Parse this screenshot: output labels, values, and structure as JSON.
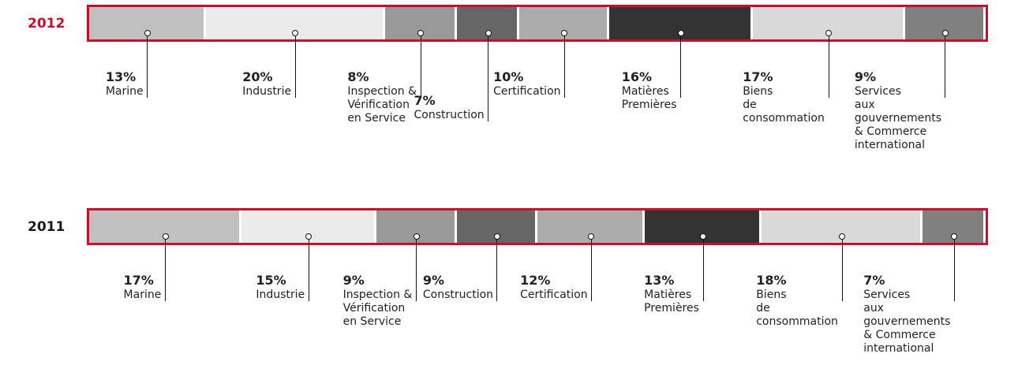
{
  "chart_data": [
    {
      "type": "bar",
      "title": "2012",
      "title_color": "#c8102e",
      "frame_color": "#c8102e",
      "categories": [
        "Marine",
        "Industrie",
        "Inspection &\nVérification\nen Service",
        "Construction",
        "Certification",
        "Matières\nPremières",
        "Biens\nde\nconsommation",
        "Services\naux\ngouvernements\n& Commerce\ninternational"
      ],
      "values": [
        13,
        20,
        8,
        7,
        10,
        16,
        17,
        9
      ],
      "value_labels": [
        "13%",
        "20%",
        "8%",
        "7%",
        "10%",
        "16%",
        "17%",
        "9%"
      ],
      "colors": [
        "#c0c0c0",
        "#ebebeb",
        "#999999",
        "#666666",
        "#acacac",
        "#333333",
        "#d9d9d9",
        "#808080"
      ]
    },
    {
      "type": "bar",
      "title": "2011",
      "title_color": "#1a1a1a",
      "frame_color": "#c8102e",
      "categories": [
        "Marine",
        "Industrie",
        "Inspection &\nVérification\nen Service",
        "Construction",
        "Certification",
        "Matières\nPremières",
        "Biens\nde\nconsommation",
        "Services\naux\ngouvernements\n& Commerce\ninternational"
      ],
      "values": [
        17,
        15,
        9,
        9,
        12,
        13,
        18,
        7
      ],
      "value_labels": [
        "17%",
        "15%",
        "9%",
        "9%",
        "12%",
        "13%",
        "18%",
        "7%"
      ],
      "colors": [
        "#c0c0c0",
        "#ebebeb",
        "#999999",
        "#666666",
        "#acacac",
        "#333333",
        "#d9d9d9",
        "#808080"
      ]
    }
  ]
}
